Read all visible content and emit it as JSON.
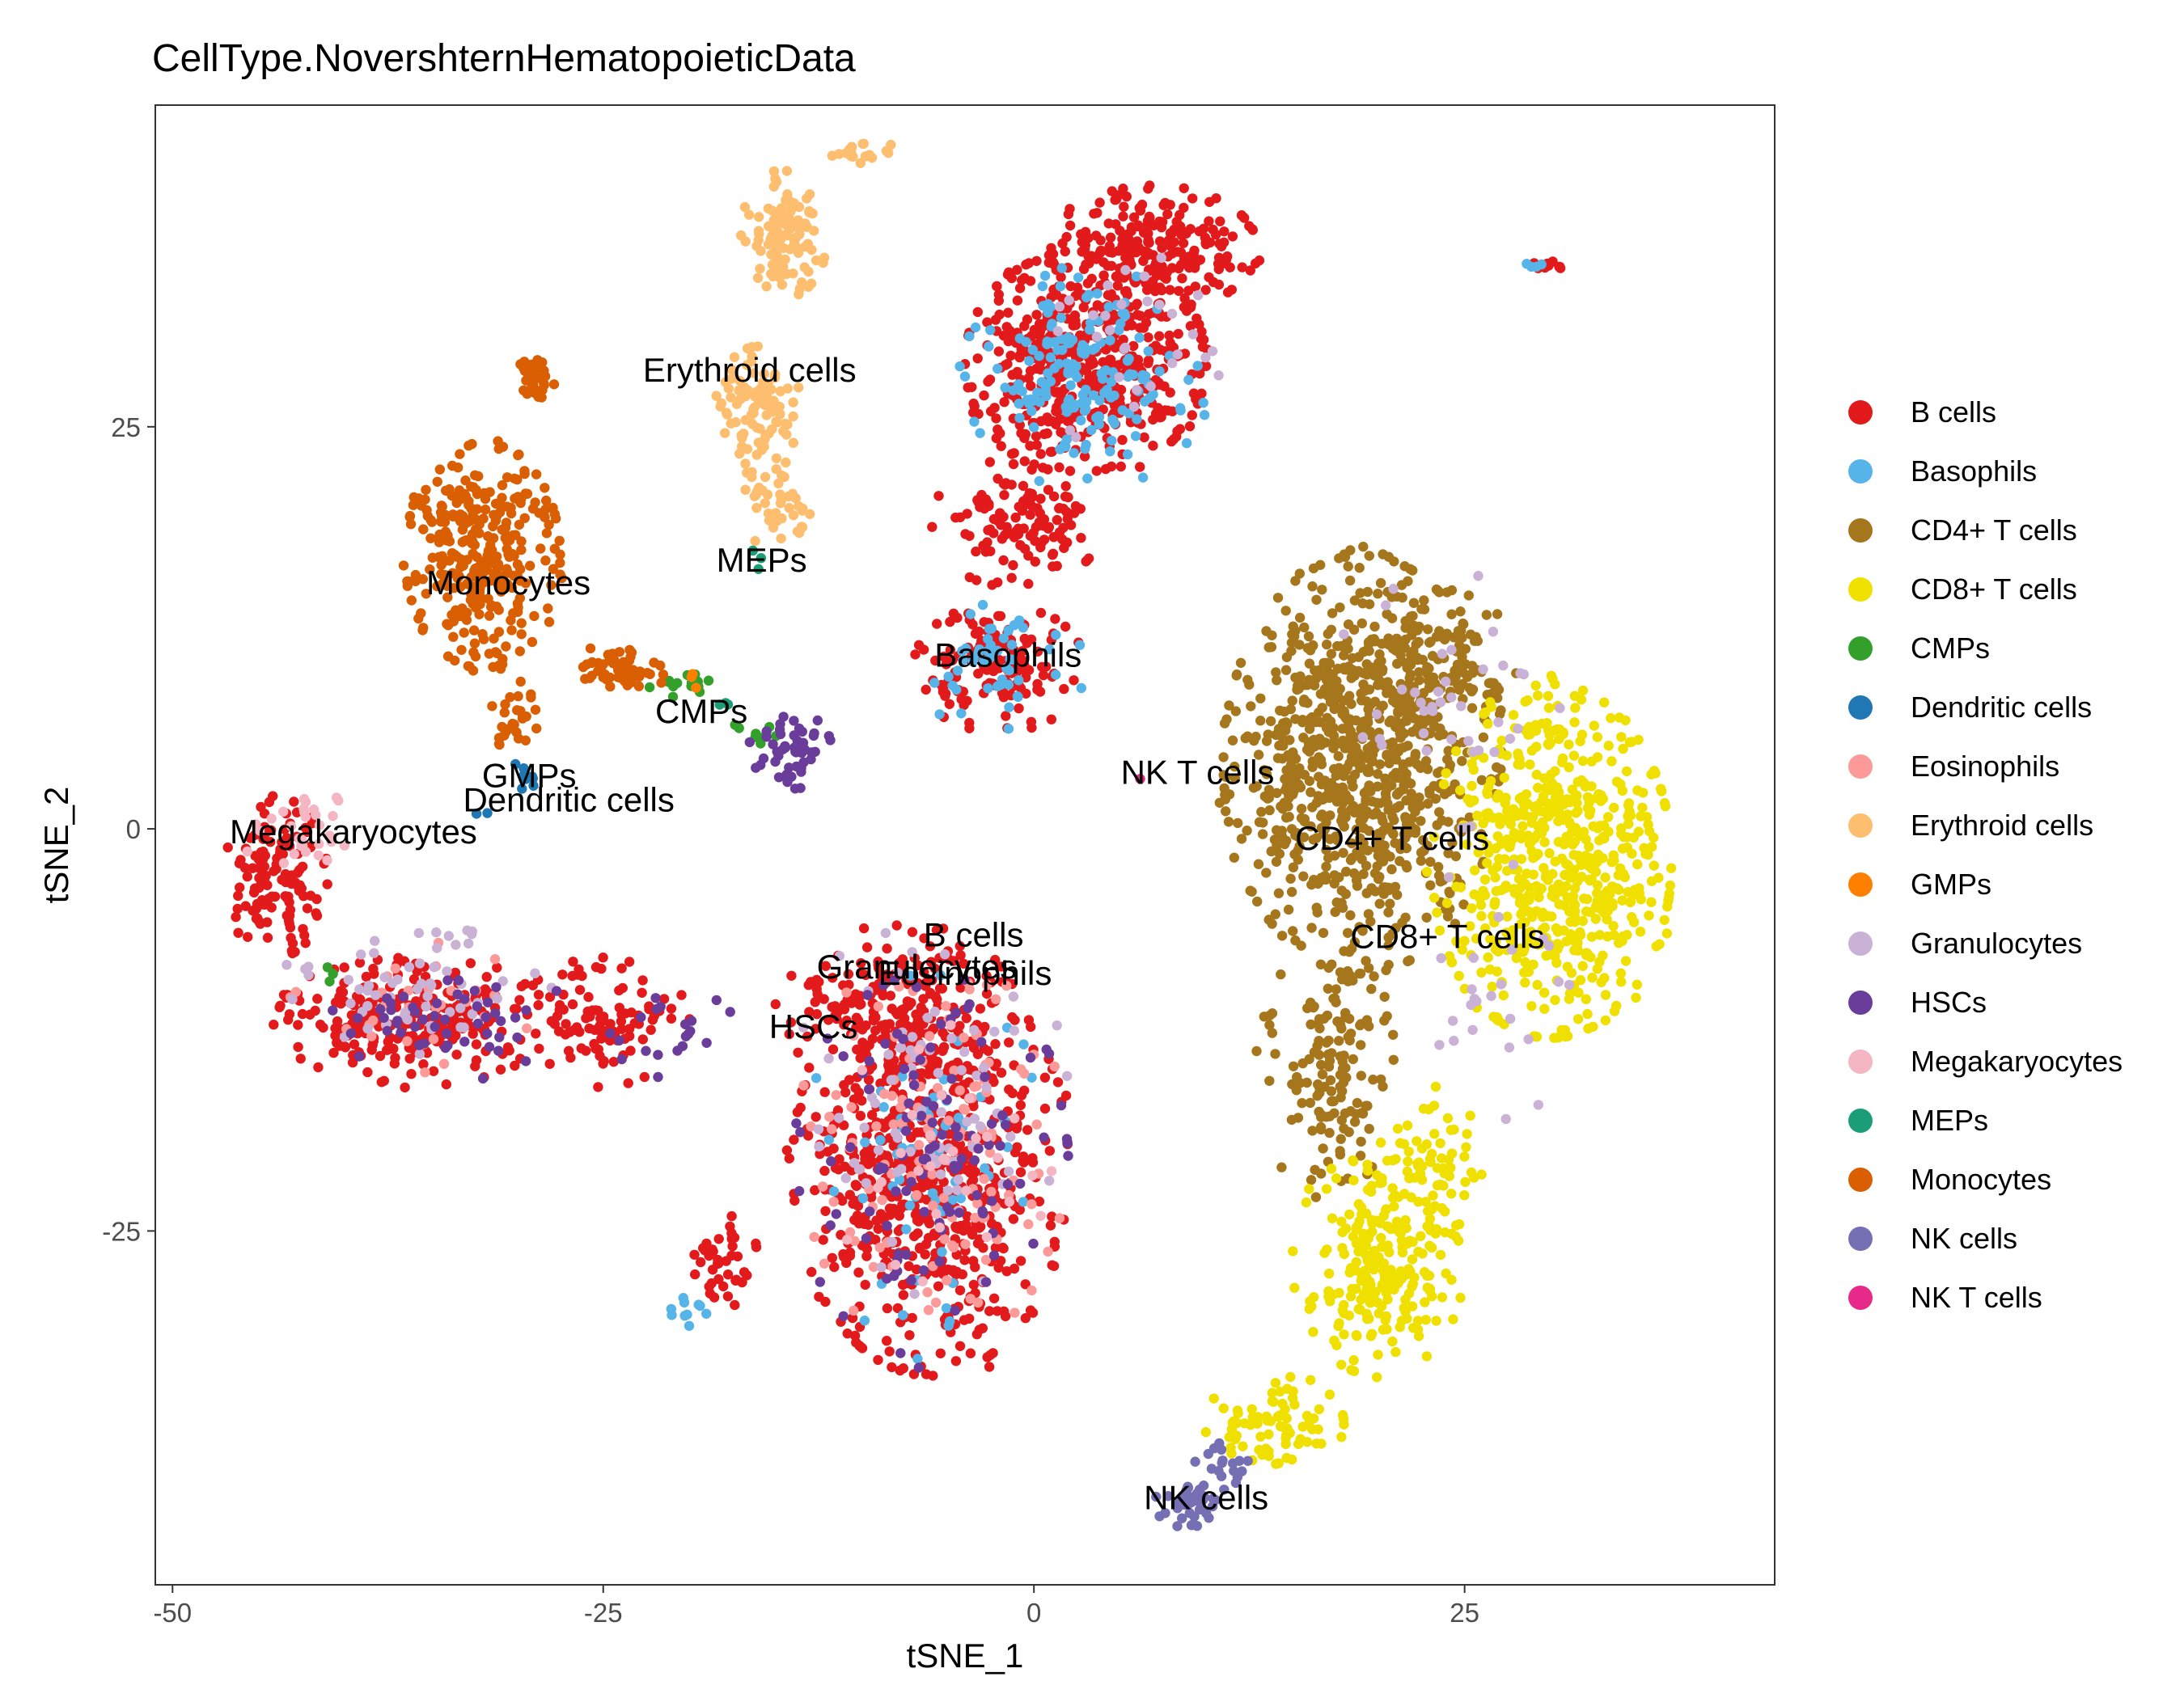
{
  "chart_data": {
    "type": "scatter",
    "title": "CellType.NovershternHematopoieticData",
    "xlabel": "tSNE_1",
    "ylabel": "tSNE_2",
    "xlim": [
      -51,
      43
    ],
    "ylim": [
      -47,
      45
    ],
    "xticks": [
      {
        "value": -50,
        "label": "-50"
      },
      {
        "value": -25,
        "label": "-25"
      },
      {
        "value": 0,
        "label": "0"
      },
      {
        "value": 25,
        "label": "25"
      }
    ],
    "yticks": [
      {
        "value": -25,
        "label": "-25"
      },
      {
        "value": 0,
        "label": "0"
      },
      {
        "value": 25,
        "label": "25"
      }
    ],
    "grid": false,
    "legend_position": "right",
    "point_seed": 7,
    "series": [
      {
        "name": "B cells",
        "color": "#E31A1C",
        "blobs": [
          {
            "cx": 3,
            "cy": 29,
            "rx": 7,
            "ry": 7,
            "n": 520
          },
          {
            "cx": 7,
            "cy": 36,
            "rx": 6,
            "ry": 4,
            "n": 220
          },
          {
            "cx": -1,
            "cy": 19,
            "rx": 5,
            "ry": 4,
            "n": 120
          },
          {
            "cx": -2,
            "cy": 10,
            "rx": 5,
            "ry": 4,
            "n": 150
          },
          {
            "cx": -6,
            "cy": -21,
            "rx": 8,
            "ry": 13,
            "n": 700
          },
          {
            "cx": -8,
            "cy": -11,
            "rx": 7,
            "ry": 5,
            "n": 180
          },
          {
            "cx": -36,
            "cy": -12,
            "rx": 8,
            "ry": 4,
            "n": 260
          },
          {
            "cx": -44,
            "cy": -3,
            "rx": 3,
            "ry": 5,
            "n": 130
          },
          {
            "cx": -25,
            "cy": -12,
            "rx": 5,
            "ry": 4,
            "n": 100
          },
          {
            "cx": -18,
            "cy": -27,
            "rx": 2,
            "ry": 3,
            "n": 40
          },
          {
            "cx": 30,
            "cy": 35,
            "rx": 1.2,
            "ry": 0.3,
            "n": 10
          }
        ]
      },
      {
        "name": "Basophils",
        "color": "#56B4E9",
        "blobs": [
          {
            "cx": 3,
            "cy": 28,
            "rx": 7,
            "ry": 7,
            "n": 170
          },
          {
            "cx": -2,
            "cy": 10,
            "rx": 5,
            "ry": 4,
            "n": 50
          },
          {
            "cx": -6,
            "cy": -21,
            "rx": 8,
            "ry": 12,
            "n": 60
          },
          {
            "cx": -20,
            "cy": -30,
            "rx": 2,
            "ry": 1,
            "n": 10
          },
          {
            "cx": 29,
            "cy": 35,
            "rx": 0.8,
            "ry": 0.3,
            "n": 4
          }
        ]
      },
      {
        "name": "CD4+ T cells",
        "color": "#A6761D",
        "blobs": [
          {
            "cx": 19,
            "cy": 4,
            "rx": 8,
            "ry": 13,
            "n": 850
          },
          {
            "cx": 17,
            "cy": -15,
            "rx": 4,
            "ry": 8,
            "n": 140
          },
          {
            "cx": 23,
            "cy": 10,
            "rx": 5,
            "ry": 5,
            "n": 120
          }
        ]
      },
      {
        "name": "CD8+ T cells",
        "color": "#F0E000",
        "blobs": [
          {
            "cx": 30,
            "cy": -2,
            "rx": 7,
            "ry": 11,
            "n": 620
          },
          {
            "cx": 20,
            "cy": -27,
            "rx": 5,
            "ry": 7,
            "n": 230
          },
          {
            "cx": 14,
            "cy": -37,
            "rx": 4,
            "ry": 3,
            "n": 80
          },
          {
            "cx": 23,
            "cy": -21,
            "rx": 3,
            "ry": 5,
            "n": 70
          }
        ]
      },
      {
        "name": "CMPs",
        "color": "#33A02C",
        "blobs": [
          {
            "cx": -20,
            "cy": 9,
            "rx": 2.5,
            "ry": 1,
            "n": 14
          },
          {
            "cx": -16,
            "cy": 6,
            "rx": 1.5,
            "ry": 1,
            "n": 8
          },
          {
            "cx": -41,
            "cy": -9,
            "rx": 0.5,
            "ry": 0.5,
            "n": 3
          }
        ]
      },
      {
        "name": "Dendritic cells",
        "color": "#1F78B4",
        "blobs": [
          {
            "cx": -29,
            "cy": 3,
            "rx": 1.5,
            "ry": 1.5,
            "n": 8
          },
          {
            "cx": -32,
            "cy": 1,
            "rx": 0.5,
            "ry": 0.5,
            "n": 2
          }
        ]
      },
      {
        "name": "Eosinophils",
        "color": "#FB9A99",
        "blobs": [
          {
            "cx": -6,
            "cy": -20,
            "rx": 8,
            "ry": 12,
            "n": 130
          },
          {
            "cx": -36,
            "cy": -11,
            "rx": 7,
            "ry": 4,
            "n": 30
          }
        ]
      },
      {
        "name": "Erythroid cells",
        "color": "#FDBF6F",
        "blobs": [
          {
            "cx": -14.5,
            "cy": 37,
            "rx": 2.5,
            "ry": 4,
            "n": 110
          },
          {
            "cx": -16,
            "cy": 26,
            "rx": 2.5,
            "ry": 4,
            "n": 90
          },
          {
            "cx": -15,
            "cy": 20,
            "rx": 2,
            "ry": 3,
            "n": 40
          },
          {
            "cx": -10,
            "cy": 42,
            "rx": 2,
            "ry": 1,
            "n": 20
          }
        ]
      },
      {
        "name": "GMPs",
        "color": "#FF7F00",
        "blobs": [
          {
            "cx": -20,
            "cy": 9,
            "rx": 1,
            "ry": 1,
            "n": 3
          }
        ]
      },
      {
        "name": "Granulocytes",
        "color": "#CAB2D6",
        "blobs": [
          {
            "cx": -6,
            "cy": -17,
            "rx": 8,
            "ry": 12,
            "n": 80
          },
          {
            "cx": -36,
            "cy": -10,
            "rx": 8,
            "ry": 4,
            "n": 60
          },
          {
            "cx": 5,
            "cy": 30,
            "rx": 6,
            "ry": 6,
            "n": 30
          },
          {
            "cx": 24,
            "cy": 8,
            "rx": 7,
            "ry": 8,
            "n": 40
          },
          {
            "cx": 27,
            "cy": -10,
            "rx": 6,
            "ry": 8,
            "n": 25
          }
        ]
      },
      {
        "name": "HSCs",
        "color": "#6A3D9A",
        "blobs": [
          {
            "cx": -14,
            "cy": 5,
            "rx": 2.5,
            "ry": 2.5,
            "n": 50
          },
          {
            "cx": -6,
            "cy": -21,
            "rx": 8,
            "ry": 12,
            "n": 110
          },
          {
            "cx": -34,
            "cy": -12,
            "rx": 7,
            "ry": 4,
            "n": 50
          },
          {
            "cx": -21,
            "cy": -13,
            "rx": 4,
            "ry": 3,
            "n": 20
          }
        ]
      },
      {
        "name": "Megakaryocytes",
        "color": "#F4B6C2",
        "blobs": [
          {
            "cx": -43,
            "cy": 0,
            "rx": 4,
            "ry": 2.5,
            "n": 30
          },
          {
            "cx": -6,
            "cy": -20,
            "rx": 7,
            "ry": 10,
            "n": 30
          }
        ]
      },
      {
        "name": "MEPs",
        "color": "#1B9E77",
        "blobs": [
          {
            "cx": -16,
            "cy": 17,
            "rx": 1,
            "ry": 1,
            "n": 3
          },
          {
            "cx": -18,
            "cy": 8,
            "rx": 1,
            "ry": 0.5,
            "n": 3
          }
        ]
      },
      {
        "name": "Monocytes",
        "color": "#D95F02",
        "blobs": [
          {
            "cx": -32,
            "cy": 17,
            "rx": 4.5,
            "ry": 7,
            "n": 330
          },
          {
            "cx": -29,
            "cy": 28,
            "rx": 1.2,
            "ry": 1.2,
            "n": 35
          },
          {
            "cx": -24,
            "cy": 10,
            "rx": 3,
            "ry": 1.5,
            "n": 60
          },
          {
            "cx": -30,
            "cy": 7,
            "rx": 1.5,
            "ry": 2.5,
            "n": 30
          }
        ]
      },
      {
        "name": "NK cells",
        "color": "#7570B3",
        "blobs": [
          {
            "cx": 9,
            "cy": -42,
            "rx": 2,
            "ry": 1.5,
            "n": 40
          },
          {
            "cx": 11,
            "cy": -40,
            "rx": 2,
            "ry": 2,
            "n": 20
          }
        ]
      },
      {
        "name": "NK T cells",
        "color": "#E7298A",
        "blobs": [
          {
            "cx": 6,
            "cy": 3,
            "rx": 0.3,
            "ry": 0.3,
            "n": 1
          }
        ]
      }
    ],
    "annotations": [
      {
        "text": "Erythroid cells",
        "x": -16.5,
        "y": 28.5
      },
      {
        "text": "MEPs",
        "x": -15.8,
        "y": 16.7
      },
      {
        "text": "Monocytes",
        "x": -30.5,
        "y": 15.3
      },
      {
        "text": "Basophils",
        "x": -1.5,
        "y": 10.8
      },
      {
        "text": "CMPs",
        "x": -19.3,
        "y": 7.3
      },
      {
        "text": "GMPs",
        "x": -29.3,
        "y": 3.3
      },
      {
        "text": "Dendritic cells",
        "x": -27,
        "y": 1.8
      },
      {
        "text": "Megakaryocytes",
        "x": -39.5,
        "y": -0.2
      },
      {
        "text": "NK T cells",
        "x": 9.5,
        "y": 3.5
      },
      {
        "text": "CD4+ T cells",
        "x": 20.8,
        "y": -0.6
      },
      {
        "text": "CD8+ T cells",
        "x": 24,
        "y": -6.7
      },
      {
        "text": "B cells",
        "x": -3.5,
        "y": -6.6
      },
      {
        "text": "Granulocytes",
        "x": -6.8,
        "y": -8.6
      },
      {
        "text": "Eosinophils",
        "x": -4,
        "y": -9.0
      },
      {
        "text": "HSCs",
        "x": -12.8,
        "y": -12.3
      },
      {
        "text": "NK cells",
        "x": 10,
        "y": -41.6
      }
    ]
  }
}
